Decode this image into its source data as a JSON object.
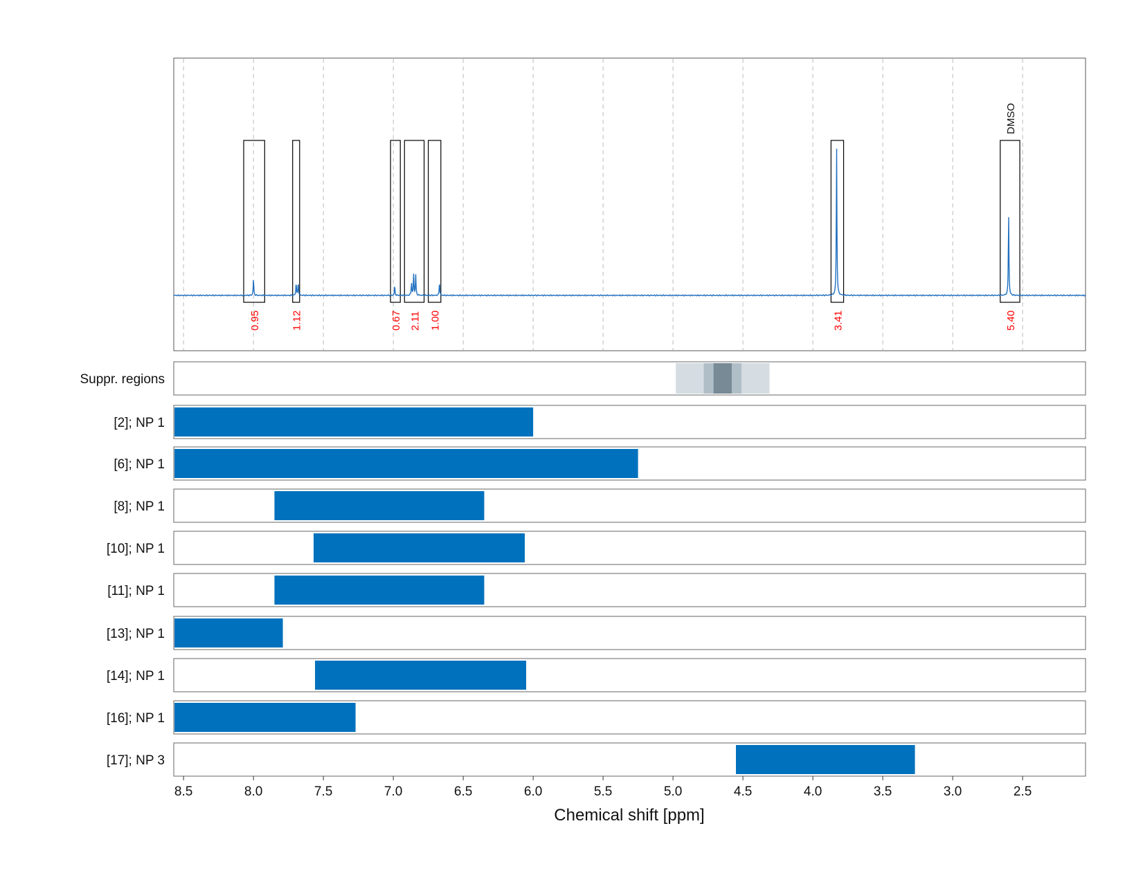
{
  "chart_data": {
    "type": "line",
    "xlabel": "Chemical shift [ppm]",
    "xlim": [
      8.57,
      2.05
    ],
    "x_reversed": true,
    "xticks": [
      "8.5",
      "8.0",
      "7.5",
      "7.0",
      "6.5",
      "6.0",
      "5.5",
      "5.0",
      "4.5",
      "4.0",
      "3.5",
      "3.0",
      "2.5"
    ],
    "grid": "vertical dashed",
    "colors": {
      "spectrum": "#1f6fbf",
      "bars": "#0071bd",
      "integrals": "#ff0000",
      "boxes": "#000000",
      "suppression": [
        "#d5dde3",
        "#b0bec7",
        "#778a96"
      ]
    },
    "spectrum": {
      "peaks": [
        {
          "ppm": 8.0,
          "intensity": 0.11
        },
        {
          "ppm": 7.695,
          "intensity": 0.085
        },
        {
          "ppm": 7.68,
          "intensity": 0.085
        },
        {
          "ppm": 6.99,
          "intensity": 0.06
        },
        {
          "ppm": 6.87,
          "intensity": 0.085
        },
        {
          "ppm": 6.855,
          "intensity": 0.145
        },
        {
          "ppm": 6.84,
          "intensity": 0.14
        },
        {
          "ppm": 6.67,
          "intensity": 0.09
        },
        {
          "ppm": 3.83,
          "intensity": 1.0
        },
        {
          "ppm": 2.6,
          "intensity": 0.55
        }
      ]
    },
    "integration_regions": [
      {
        "from": 8.07,
        "to": 7.92,
        "integral": "0.95"
      },
      {
        "from": 7.72,
        "to": 7.67,
        "integral": "1.12"
      },
      {
        "from": 7.02,
        "to": 6.95,
        "integral": "0.67"
      },
      {
        "from": 6.92,
        "to": 6.78,
        "integral": "2.11"
      },
      {
        "from": 6.75,
        "to": 6.66,
        "integral": "1.00"
      },
      {
        "from": 3.87,
        "to": 3.78,
        "integral": "3.41"
      },
      {
        "from": 2.66,
        "to": 2.52,
        "integral": "5.40",
        "label": "DMSO"
      }
    ],
    "suppressed_regions": [
      {
        "from": 4.98,
        "to": 4.31,
        "level": 0
      },
      {
        "from": 4.78,
        "to": 4.51,
        "level": 1
      },
      {
        "from": 4.71,
        "to": 4.58,
        "level": 2
      }
    ],
    "ranges": [
      {
        "label": "Suppr. regions"
      },
      {
        "label": "[2]; NP 1",
        "from": 8.57,
        "to": 6.0
      },
      {
        "label": "[6]; NP 1",
        "from": 8.57,
        "to": 5.25
      },
      {
        "label": "[8]; NP 1",
        "from": 7.85,
        "to": 6.35
      },
      {
        "label": "[10]; NP 1",
        "from": 7.57,
        "to": 6.06
      },
      {
        "label": "[11]; NP 1",
        "from": 7.85,
        "to": 6.35
      },
      {
        "label": "[13]; NP 1",
        "from": 8.57,
        "to": 7.79
      },
      {
        "label": "[14]; NP 1",
        "from": 7.56,
        "to": 6.05
      },
      {
        "label": "[16]; NP 1",
        "from": 8.57,
        "to": 7.27
      },
      {
        "label": "[17]; NP 3",
        "from": 4.55,
        "to": 3.27
      }
    ]
  }
}
